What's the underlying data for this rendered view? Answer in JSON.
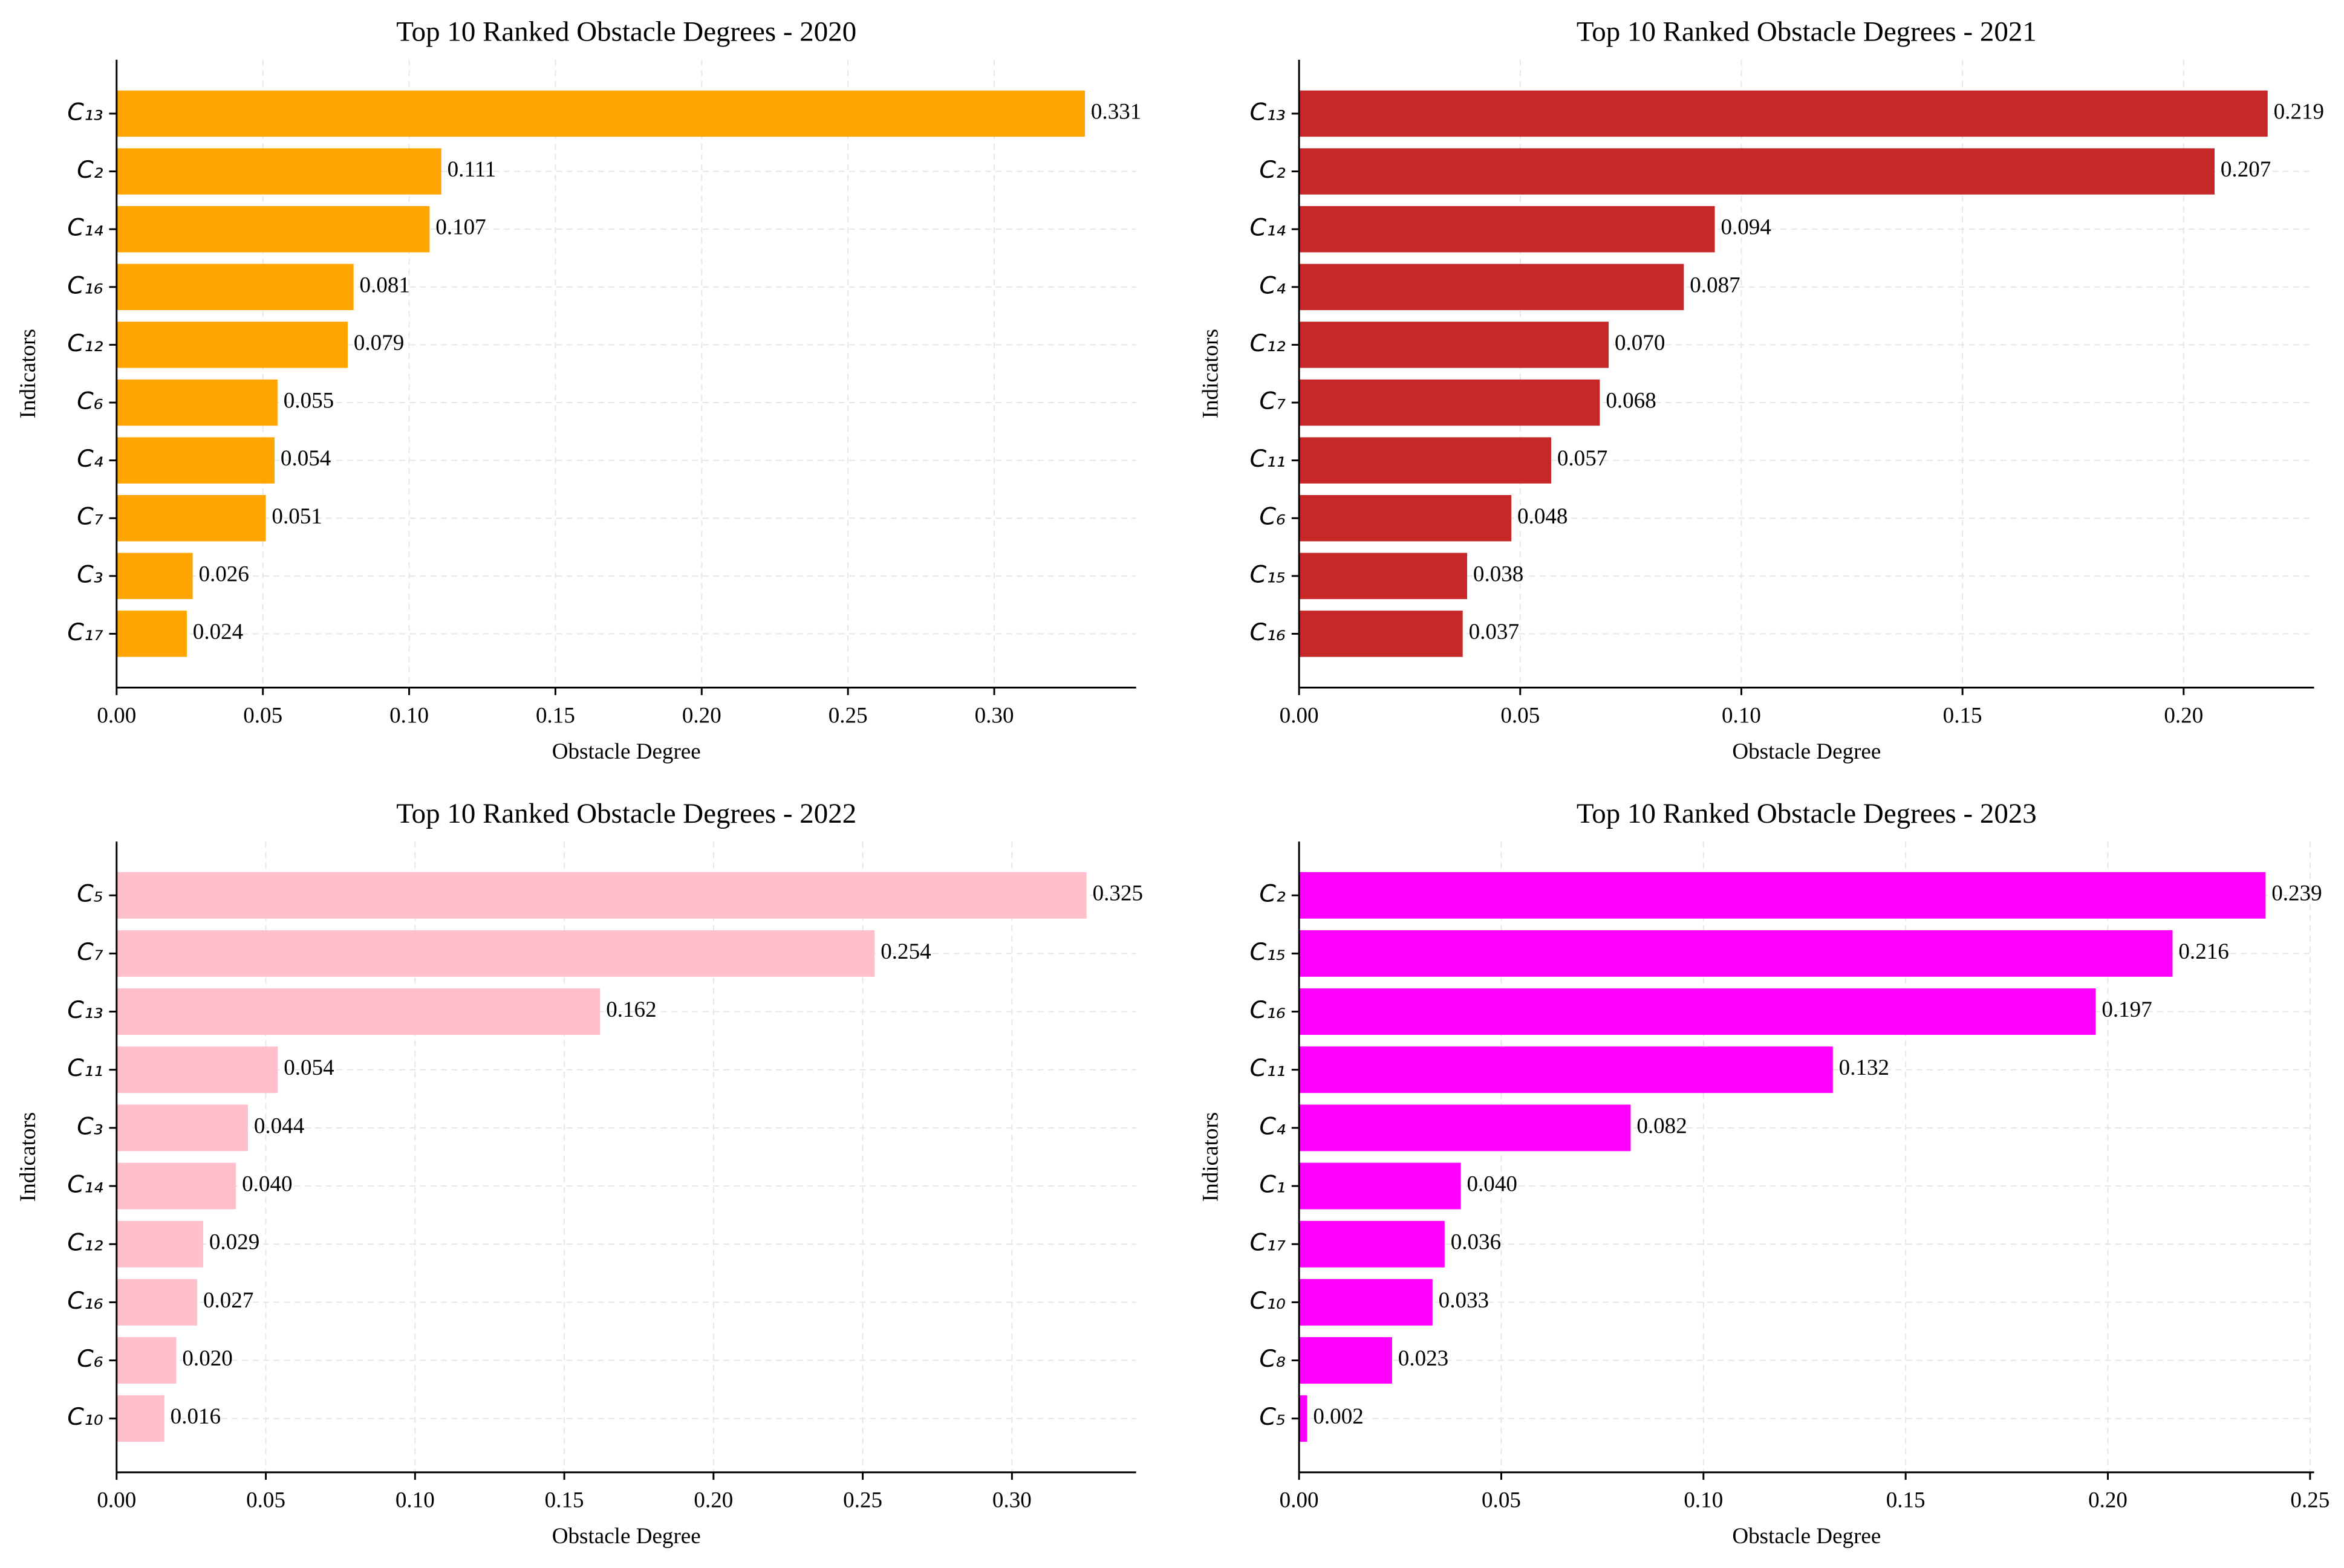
{
  "chart_data": [
    {
      "type": "barh",
      "title": "Top 10 Ranked Obstacle Degrees - 2020",
      "xlabel": "Obstacle Degree",
      "ylabel": "Indicators",
      "categories": [
        "C₁₃",
        "C₂",
        "C₁₄",
        "C₁₆",
        "C₁₂",
        "C₆",
        "C₄",
        "C₇",
        "C₃",
        "C₁₇"
      ],
      "values": [
        0.331,
        0.111,
        0.107,
        0.081,
        0.079,
        0.055,
        0.054,
        0.051,
        0.026,
        0.024
      ],
      "value_labels": [
        "0.331",
        "0.111",
        "0.107",
        "0.081",
        "0.079",
        "0.055",
        "0.054",
        "0.051",
        "0.026",
        "0.024"
      ],
      "color": "#ffa500",
      "xlim": [
        0,
        0.3485
      ],
      "xticks": [
        {
          "value": 0,
          "label": "0.00"
        },
        {
          "value": 0.05,
          "label": "0.05"
        },
        {
          "value": 0.1,
          "label": "0.10"
        },
        {
          "value": 0.15,
          "label": "0.15"
        },
        {
          "value": 0.2,
          "label": "0.20"
        },
        {
          "value": 0.25,
          "label": "0.25"
        },
        {
          "value": 0.3,
          "label": "0.30"
        }
      ],
      "grid": true
    },
    {
      "type": "barh",
      "title": "Top 10 Ranked Obstacle Degrees - 2021",
      "xlabel": "Obstacle Degree",
      "ylabel": "Indicators",
      "categories": [
        "C₁₃",
        "C₂",
        "C₁₄",
        "C₄",
        "C₁₂",
        "C₇",
        "C₁₁",
        "C₆",
        "C₁₅",
        "C₁₆"
      ],
      "values": [
        0.219,
        0.207,
        0.094,
        0.087,
        0.07,
        0.068,
        0.057,
        0.048,
        0.038,
        0.037
      ],
      "value_labels": [
        "0.219",
        "0.207",
        "0.094",
        "0.087",
        "0.070",
        "0.068",
        "0.057",
        "0.048",
        "0.038",
        "0.037"
      ],
      "color": "#c62828",
      "xlim": [
        0,
        0.2295
      ],
      "xticks": [
        {
          "value": 0,
          "label": "0.00"
        },
        {
          "value": 0.05,
          "label": "0.05"
        },
        {
          "value": 0.1,
          "label": "0.10"
        },
        {
          "value": 0.15,
          "label": "0.15"
        },
        {
          "value": 0.2,
          "label": "0.20"
        }
      ],
      "grid": true
    },
    {
      "type": "barh",
      "title": "Top 10 Ranked Obstacle Degrees - 2022",
      "xlabel": "Obstacle Degree",
      "ylabel": "Indicators",
      "categories": [
        "C₅",
        "C₇",
        "C₁₃",
        "C₁₁",
        "C₃",
        "C₁₄",
        "C₁₂",
        "C₁₆",
        "C₆",
        "C₁₀"
      ],
      "values": [
        0.325,
        0.254,
        0.162,
        0.054,
        0.044,
        0.04,
        0.029,
        0.027,
        0.02,
        0.016
      ],
      "value_labels": [
        "0.325",
        "0.254",
        "0.162",
        "0.054",
        "0.044",
        "0.040",
        "0.029",
        "0.027",
        "0.020",
        "0.016"
      ],
      "color": "#ffc0cb",
      "xlim": [
        0,
        0.3416
      ],
      "xticks": [
        {
          "value": 0,
          "label": "0.00"
        },
        {
          "value": 0.05,
          "label": "0.05"
        },
        {
          "value": 0.1,
          "label": "0.10"
        },
        {
          "value": 0.15,
          "label": "0.15"
        },
        {
          "value": 0.2,
          "label": "0.20"
        },
        {
          "value": 0.25,
          "label": "0.25"
        },
        {
          "value": 0.3,
          "label": "0.30"
        }
      ],
      "grid": true
    },
    {
      "type": "barh",
      "title": "Top 10 Ranked Obstacle Degrees - 2023",
      "xlabel": "Obstacle Degree",
      "ylabel": "Indicators",
      "categories": [
        "C₂",
        "C₁₅",
        "C₁₆",
        "C₁₁",
        "C₄",
        "C₁",
        "C₁₇",
        "C₁₀",
        "C₈",
        "C₅"
      ],
      "values": [
        0.239,
        0.216,
        0.197,
        0.132,
        0.082,
        0.04,
        0.036,
        0.033,
        0.023,
        0.002
      ],
      "value_labels": [
        "0.239",
        "0.216",
        "0.197",
        "0.132",
        "0.082",
        "0.040",
        "0.036",
        "0.033",
        "0.023",
        "0.002"
      ],
      "color": "#ff00ff",
      "xlim": [
        0,
        0.251
      ],
      "xticks": [
        {
          "value": 0,
          "label": "0.00"
        },
        {
          "value": 0.05,
          "label": "0.05"
        },
        {
          "value": 0.1,
          "label": "0.10"
        },
        {
          "value": 0.15,
          "label": "0.15"
        },
        {
          "value": 0.2,
          "label": "0.20"
        },
        {
          "value": 0.25,
          "label": "0.25"
        }
      ],
      "grid": true
    }
  ]
}
